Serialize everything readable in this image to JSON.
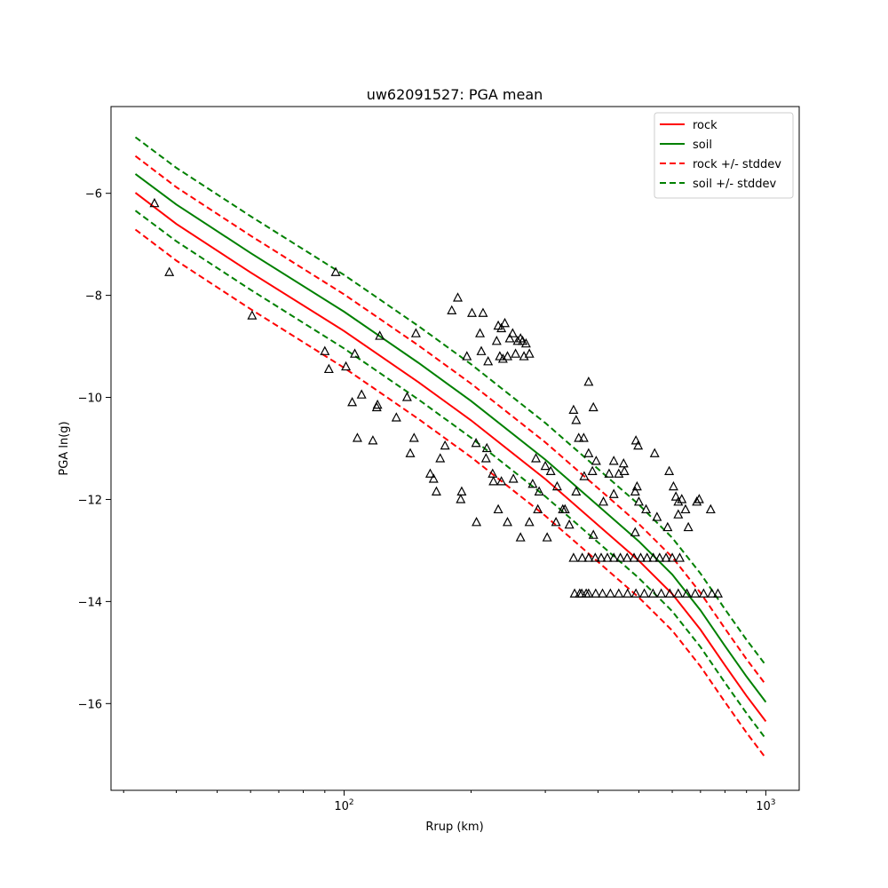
{
  "chart_data": {
    "type": "line",
    "title": "uw62091527: PGA mean",
    "xlabel": "Rrup (km)",
    "ylabel": "PGA ln(g)",
    "xscale": "log",
    "xlim": [
      28,
      1200
    ],
    "ylim": [
      -17.7,
      -4.3
    ],
    "xticks": [
      {
        "value": 100,
        "base": "10",
        "exp": "2"
      },
      {
        "value": 1000,
        "base": "10",
        "exp": "3"
      }
    ],
    "yticks": [
      -6,
      -8,
      -10,
      -12,
      -14,
      -16
    ],
    "legend_position": "top-right",
    "series": [
      {
        "name": "rock",
        "color": "#ff0000",
        "dash": "solid",
        "x": [
          32,
          40,
          60,
          100,
          150,
          200,
          300,
          400,
          500,
          600,
          700,
          800,
          900,
          1000
        ],
        "y": [
          -5.99,
          -6.6,
          -7.55,
          -8.7,
          -9.7,
          -10.45,
          -11.6,
          -12.5,
          -13.2,
          -13.85,
          -14.55,
          -15.25,
          -15.85,
          -16.35
        ]
      },
      {
        "name": "soil",
        "color": "#008000",
        "dash": "solid",
        "x": [
          32,
          40,
          60,
          100,
          150,
          200,
          300,
          400,
          500,
          600,
          700,
          800,
          900,
          1000
        ],
        "y": [
          -5.62,
          -6.22,
          -7.17,
          -8.32,
          -9.32,
          -10.07,
          -11.22,
          -12.12,
          -12.82,
          -13.47,
          -14.17,
          -14.87,
          -15.47,
          -15.97
        ]
      },
      {
        "name": "rock +/- stddev",
        "color": "#ff0000",
        "dash": "dashed",
        "x": [
          32,
          40,
          60,
          100,
          150,
          200,
          300,
          400,
          500,
          600,
          700,
          800,
          900,
          1000
        ],
        "y": [
          -5.27,
          -5.88,
          -6.83,
          -7.98,
          -8.98,
          -9.73,
          -10.88,
          -11.78,
          -12.48,
          -13.13,
          -13.83,
          -14.53,
          -15.13,
          -15.63
        ]
      },
      {
        "name": "",
        "color": "#ff0000",
        "dash": "dashed",
        "x": [
          32,
          40,
          60,
          100,
          150,
          200,
          300,
          400,
          500,
          600,
          700,
          800,
          900,
          1000
        ],
        "y": [
          -6.71,
          -7.32,
          -8.27,
          -9.42,
          -10.42,
          -11.17,
          -12.32,
          -13.22,
          -13.92,
          -14.57,
          -15.27,
          -15.97,
          -16.57,
          -17.07
        ]
      },
      {
        "name": "soil +/- stddev",
        "color": "#008000",
        "dash": "dashed",
        "x": [
          32,
          40,
          60,
          100,
          150,
          200,
          300,
          400,
          500,
          600,
          700,
          800,
          900,
          1000
        ],
        "y": [
          -4.9,
          -5.5,
          -6.45,
          -7.6,
          -8.6,
          -9.35,
          -10.5,
          -11.4,
          -12.1,
          -12.75,
          -13.45,
          -14.15,
          -14.75,
          -15.25
        ]
      },
      {
        "name": "",
        "color": "#008000",
        "dash": "dashed",
        "x": [
          32,
          40,
          60,
          100,
          150,
          200,
          300,
          400,
          500,
          600,
          700,
          800,
          900,
          1000
        ],
        "y": [
          -6.34,
          -6.94,
          -7.89,
          -9.04,
          -10.04,
          -10.79,
          -11.94,
          -12.84,
          -13.54,
          -14.19,
          -14.89,
          -15.59,
          -16.19,
          -16.69
        ]
      }
    ],
    "observations": {
      "marker": "open-triangle",
      "color": "#000000",
      "x": [
        35.5,
        38.5,
        60.5,
        95.5,
        90,
        92,
        101,
        104.5,
        106,
        107.5,
        110,
        117,
        119.5,
        120,
        121.5,
        141,
        143.5,
        133,
        146.5,
        148,
        160,
        163,
        169,
        165.5,
        173.5,
        180,
        186,
        189,
        190,
        195.5,
        201,
        205.5,
        210,
        211.5,
        213.5,
        217,
        219.5,
        225,
        230,
        232,
        234,
        236,
        238,
        240.5,
        244,
        247,
        251,
        255,
        258,
        262,
        265,
        267,
        270,
        275,
        280,
        285,
        290,
        300,
        309,
        320,
        330,
        342,
        355,
        371,
        390,
        412,
        436,
        462,
        490,
        520,
        552,
        585,
        620,
        655,
        695,
        740,
        206,
        218,
        226,
        232,
        236,
        244,
        252,
        262,
        275,
        288,
        303,
        318,
        334,
        350,
        367,
        380,
        394,
        407,
        421,
        436,
        452,
        469,
        487,
        505,
        523,
        541,
        560,
        580,
        600,
        625,
        352,
        362,
        366,
        375,
        380,
        395,
        410,
        428,
        448,
        470,
        492,
        515,
        540,
        565,
        592,
        620,
        650,
        680,
        712,
        745,
        770,
        380,
        390,
        350,
        355,
        360,
        370,
        380,
        388,
        396,
        425,
        436,
        448,
        460,
        490,
        495,
        500,
        492,
        498,
        545,
        590,
        604,
        612,
        620,
        632,
        645,
        686
      ],
      "y": [
        -6.2,
        -7.55,
        -8.4,
        -7.55,
        -9.1,
        -9.45,
        -9.4,
        -10.1,
        -9.15,
        -10.8,
        -9.95,
        -10.85,
        -10.2,
        -10.15,
        -8.8,
        -10,
        -11.1,
        -10.4,
        -10.8,
        -8.75,
        -11.5,
        -11.6,
        -11.2,
        -11.85,
        -10.95,
        -8.3,
        -8.05,
        -12,
        -11.85,
        -9.2,
        -8.35,
        -10.9,
        -8.75,
        -9.1,
        -8.35,
        -11.2,
        -9.3,
        -11.5,
        -8.9,
        -8.6,
        -9.2,
        -8.65,
        -9.25,
        -8.55,
        -9.2,
        -8.85,
        -8.75,
        -9.15,
        -8.9,
        -8.85,
        -8.9,
        -9.2,
        -8.95,
        -9.15,
        -11.7,
        -11.2,
        -11.85,
        -11.35,
        -11.45,
        -11.75,
        -12.2,
        -12.5,
        -11.85,
        -11.55,
        -12.7,
        -12.05,
        -11.9,
        -11.45,
        -12.65,
        -12.2,
        -12.35,
        -12.55,
        -12.3,
        -12.55,
        -12,
        -12.2,
        -12.45,
        -11,
        -11.65,
        -12.2,
        -11.65,
        -12.45,
        -11.6,
        -12.75,
        -12.45,
        -12.2,
        -12.75,
        -12.45,
        -12.2,
        -13.15,
        -13.15,
        -13.15,
        -13.15,
        -13.15,
        -13.15,
        -13.15,
        -13.15,
        -13.15,
        -13.15,
        -13.15,
        -13.15,
        -13.15,
        -13.15,
        -13.15,
        -13.15,
        -13.15,
        -13.85,
        -13.85,
        -13.85,
        -13.85,
        -13.85,
        -13.85,
        -13.85,
        -13.85,
        -13.85,
        -13.85,
        -13.85,
        -13.85,
        -13.85,
        -13.85,
        -13.85,
        -13.85,
        -13.85,
        -13.85,
        -13.85,
        -13.85,
        -13.85,
        -9.7,
        -10.2,
        -10.25,
        -10.45,
        -10.8,
        -10.8,
        -11.1,
        -11.45,
        -11.25,
        -11.5,
        -11.25,
        -11.5,
        -11.3,
        -11.85,
        -11.75,
        -12.05,
        -10.85,
        -10.95,
        -11.1,
        -11.45,
        -11.75,
        -11.95,
        -12.05,
        -12,
        -12.2,
        -12.05
      ]
    }
  }
}
